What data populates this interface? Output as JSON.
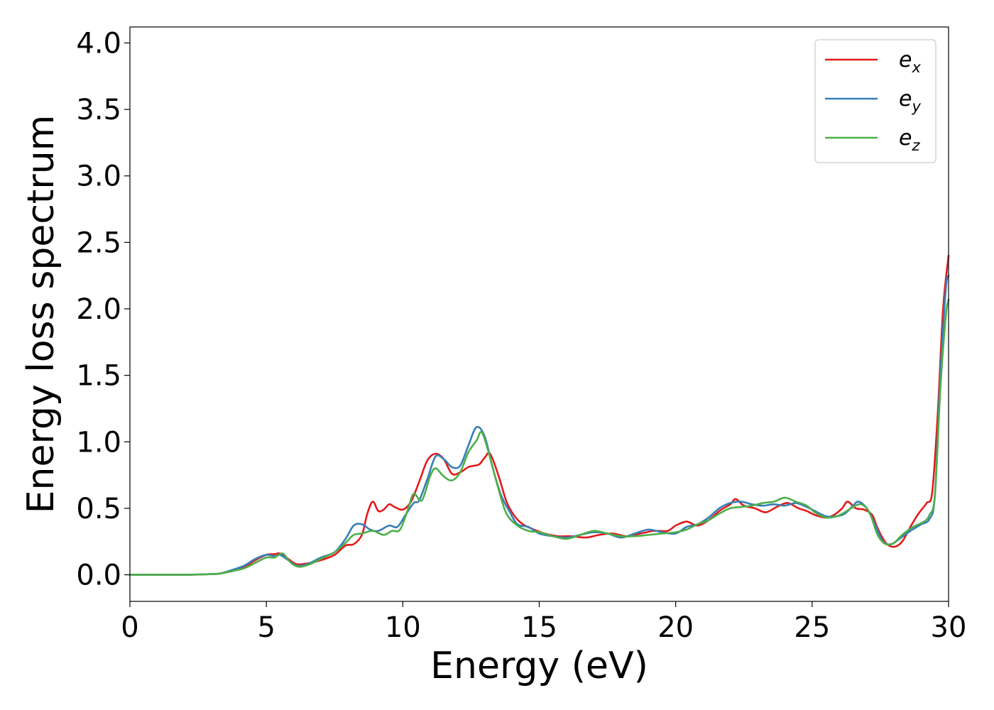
{
  "chart_data": {
    "type": "line",
    "xlabel": "Energy (eV)",
    "ylabel": "Energy loss spectrum",
    "xlim": [
      0,
      30
    ],
    "ylim": [
      -0.2,
      4.12
    ],
    "xticks": [
      0,
      5,
      10,
      15,
      20,
      25,
      30
    ],
    "yticks": [
      0.0,
      0.5,
      1.0,
      1.5,
      2.0,
      2.5,
      3.0,
      3.5,
      4.0
    ],
    "xtick_labels": [
      "0",
      "5",
      "10",
      "15",
      "20",
      "25",
      "30"
    ],
    "ytick_labels": [
      "0.0",
      "0.5",
      "1.0",
      "1.5",
      "2.0",
      "2.5",
      "3.0",
      "3.5",
      "4.0"
    ],
    "grid": false,
    "legend_position": "top-right",
    "series": [
      {
        "name": "e_x",
        "legend_base": "e",
        "legend_sub": "x",
        "color": "#e41a1c",
        "points": [
          [
            0,
            0
          ],
          [
            1,
            0
          ],
          [
            2,
            0
          ],
          [
            3,
            0.005
          ],
          [
            3.3,
            0.01
          ],
          [
            3.8,
            0.03
          ],
          [
            4.2,
            0.06
          ],
          [
            4.6,
            0.11
          ],
          [
            5,
            0.15
          ],
          [
            5.3,
            0.155
          ],
          [
            5.5,
            0.16
          ],
          [
            5.8,
            0.12
          ],
          [
            6.1,
            0.08
          ],
          [
            6.5,
            0.085
          ],
          [
            7,
            0.11
          ],
          [
            7.5,
            0.15
          ],
          [
            7.9,
            0.22
          ],
          [
            8.2,
            0.23
          ],
          [
            8.5,
            0.3
          ],
          [
            8.7,
            0.46
          ],
          [
            8.9,
            0.55
          ],
          [
            9.1,
            0.48
          ],
          [
            9.3,
            0.49
          ],
          [
            9.5,
            0.53
          ],
          [
            9.7,
            0.51
          ],
          [
            10,
            0.49
          ],
          [
            10.3,
            0.55
          ],
          [
            10.6,
            0.7
          ],
          [
            10.9,
            0.86
          ],
          [
            11.2,
            0.91
          ],
          [
            11.5,
            0.87
          ],
          [
            11.8,
            0.76
          ],
          [
            12.1,
            0.77
          ],
          [
            12.4,
            0.81
          ],
          [
            12.6,
            0.82
          ],
          [
            12.8,
            0.83
          ],
          [
            13,
            0.88
          ],
          [
            13.2,
            0.91
          ],
          [
            13.5,
            0.75
          ],
          [
            13.8,
            0.55
          ],
          [
            14.1,
            0.44
          ],
          [
            14.4,
            0.38
          ],
          [
            14.8,
            0.34
          ],
          [
            15.2,
            0.31
          ],
          [
            15.7,
            0.29
          ],
          [
            16.2,
            0.29
          ],
          [
            16.7,
            0.28
          ],
          [
            17.2,
            0.3
          ],
          [
            17.7,
            0.31
          ],
          [
            18.2,
            0.29
          ],
          [
            18.7,
            0.31
          ],
          [
            19.2,
            0.33
          ],
          [
            19.7,
            0.33
          ],
          [
            20,
            0.37
          ],
          [
            20.4,
            0.4
          ],
          [
            20.8,
            0.37
          ],
          [
            21.2,
            0.41
          ],
          [
            21.6,
            0.48
          ],
          [
            22,
            0.53
          ],
          [
            22.2,
            0.57
          ],
          [
            22.5,
            0.52
          ],
          [
            22.9,
            0.5
          ],
          [
            23.3,
            0.47
          ],
          [
            23.7,
            0.51
          ],
          [
            24.1,
            0.54
          ],
          [
            24.5,
            0.5
          ],
          [
            24.8,
            0.48
          ],
          [
            25.1,
            0.45
          ],
          [
            25.5,
            0.43
          ],
          [
            25.8,
            0.45
          ],
          [
            26.1,
            0.5
          ],
          [
            26.3,
            0.55
          ],
          [
            26.6,
            0.5
          ],
          [
            26.9,
            0.49
          ],
          [
            27.2,
            0.45
          ],
          [
            27.4,
            0.35
          ],
          [
            27.7,
            0.24
          ],
          [
            28,
            0.21
          ],
          [
            28.3,
            0.25
          ],
          [
            28.6,
            0.36
          ],
          [
            28.9,
            0.46
          ],
          [
            29.2,
            0.54
          ],
          [
            29.4,
            0.62
          ],
          [
            29.6,
            1.2
          ],
          [
            29.8,
            2.0
          ],
          [
            30,
            2.4
          ]
        ]
      },
      {
        "name": "e_y",
        "legend_base": "e",
        "legend_sub": "y",
        "color": "#377eb8",
        "points": [
          [
            0,
            0
          ],
          [
            1,
            0
          ],
          [
            2,
            0
          ],
          [
            3,
            0.005
          ],
          [
            3.3,
            0.01
          ],
          [
            3.8,
            0.04
          ],
          [
            4.2,
            0.07
          ],
          [
            4.6,
            0.12
          ],
          [
            5,
            0.15
          ],
          [
            5.3,
            0.14
          ],
          [
            5.5,
            0.15
          ],
          [
            5.8,
            0.11
          ],
          [
            6.1,
            0.07
          ],
          [
            6.5,
            0.08
          ],
          [
            7,
            0.13
          ],
          [
            7.5,
            0.17
          ],
          [
            7.9,
            0.27
          ],
          [
            8.2,
            0.37
          ],
          [
            8.5,
            0.38
          ],
          [
            8.8,
            0.34
          ],
          [
            9.1,
            0.33
          ],
          [
            9.5,
            0.37
          ],
          [
            9.8,
            0.36
          ],
          [
            10.1,
            0.45
          ],
          [
            10.4,
            0.54
          ],
          [
            10.6,
            0.56
          ],
          [
            10.9,
            0.72
          ],
          [
            11.2,
            0.89
          ],
          [
            11.5,
            0.87
          ],
          [
            11.8,
            0.81
          ],
          [
            12.1,
            0.82
          ],
          [
            12.4,
            0.97
          ],
          [
            12.7,
            1.11
          ],
          [
            13,
            1.04
          ],
          [
            13.3,
            0.8
          ],
          [
            13.6,
            0.6
          ],
          [
            13.9,
            0.48
          ],
          [
            14.2,
            0.38
          ],
          [
            14.6,
            0.36
          ],
          [
            15,
            0.31
          ],
          [
            15.5,
            0.29
          ],
          [
            16,
            0.28
          ],
          [
            16.5,
            0.3
          ],
          [
            17,
            0.32
          ],
          [
            17.5,
            0.31
          ],
          [
            18,
            0.28
          ],
          [
            18.5,
            0.31
          ],
          [
            19,
            0.34
          ],
          [
            19.5,
            0.32
          ],
          [
            20,
            0.31
          ],
          [
            20.4,
            0.36
          ],
          [
            20.8,
            0.38
          ],
          [
            21.2,
            0.43
          ],
          [
            21.6,
            0.5
          ],
          [
            22,
            0.54
          ],
          [
            22.4,
            0.55
          ],
          [
            22.8,
            0.53
          ],
          [
            23.2,
            0.52
          ],
          [
            23.6,
            0.53
          ],
          [
            24,
            0.52
          ],
          [
            24.4,
            0.54
          ],
          [
            24.8,
            0.51
          ],
          [
            25.1,
            0.48
          ],
          [
            25.5,
            0.44
          ],
          [
            25.9,
            0.44
          ],
          [
            26.2,
            0.46
          ],
          [
            26.5,
            0.52
          ],
          [
            26.7,
            0.55
          ],
          [
            27,
            0.5
          ],
          [
            27.3,
            0.38
          ],
          [
            27.6,
            0.25
          ],
          [
            27.9,
            0.23
          ],
          [
            28.2,
            0.27
          ],
          [
            28.6,
            0.33
          ],
          [
            29,
            0.38
          ],
          [
            29.3,
            0.42
          ],
          [
            29.5,
            0.6
          ],
          [
            29.7,
            1.5
          ],
          [
            29.9,
            2.15
          ],
          [
            30,
            2.25
          ]
        ]
      },
      {
        "name": "e_z",
        "legend_base": "e",
        "legend_sub": "z",
        "color": "#4daf4a",
        "points": [
          [
            0,
            0
          ],
          [
            1,
            0
          ],
          [
            2,
            0
          ],
          [
            3,
            0.005
          ],
          [
            3.3,
            0.01
          ],
          [
            3.8,
            0.03
          ],
          [
            4.2,
            0.05
          ],
          [
            4.6,
            0.09
          ],
          [
            5,
            0.13
          ],
          [
            5.3,
            0.13
          ],
          [
            5.6,
            0.16
          ],
          [
            5.9,
            0.09
          ],
          [
            6.2,
            0.06
          ],
          [
            6.6,
            0.08
          ],
          [
            7,
            0.12
          ],
          [
            7.5,
            0.17
          ],
          [
            7.9,
            0.24
          ],
          [
            8.2,
            0.3
          ],
          [
            8.5,
            0.31
          ],
          [
            8.9,
            0.33
          ],
          [
            9.3,
            0.3
          ],
          [
            9.6,
            0.33
          ],
          [
            9.9,
            0.34
          ],
          [
            10.2,
            0.5
          ],
          [
            10.4,
            0.61
          ],
          [
            10.7,
            0.56
          ],
          [
            11,
            0.74
          ],
          [
            11.2,
            0.8
          ],
          [
            11.5,
            0.74
          ],
          [
            11.8,
            0.71
          ],
          [
            12.1,
            0.77
          ],
          [
            12.4,
            0.92
          ],
          [
            12.7,
            1.01
          ],
          [
            12.9,
            1.07
          ],
          [
            13.2,
            0.88
          ],
          [
            13.5,
            0.65
          ],
          [
            13.8,
            0.46
          ],
          [
            14.2,
            0.37
          ],
          [
            14.6,
            0.33
          ],
          [
            15,
            0.32
          ],
          [
            15.5,
            0.29
          ],
          [
            16,
            0.27
          ],
          [
            16.5,
            0.3
          ],
          [
            17,
            0.33
          ],
          [
            17.5,
            0.31
          ],
          [
            18,
            0.29
          ],
          [
            18.5,
            0.29
          ],
          [
            19,
            0.3
          ],
          [
            19.5,
            0.31
          ],
          [
            20,
            0.32
          ],
          [
            20.4,
            0.34
          ],
          [
            20.8,
            0.38
          ],
          [
            21.2,
            0.41
          ],
          [
            21.6,
            0.46
          ],
          [
            22,
            0.5
          ],
          [
            22.4,
            0.51
          ],
          [
            22.8,
            0.52
          ],
          [
            23.2,
            0.54
          ],
          [
            23.6,
            0.55
          ],
          [
            24,
            0.58
          ],
          [
            24.4,
            0.55
          ],
          [
            24.8,
            0.52
          ],
          [
            25.1,
            0.47
          ],
          [
            25.5,
            0.43
          ],
          [
            25.9,
            0.44
          ],
          [
            26.2,
            0.47
          ],
          [
            26.5,
            0.51
          ],
          [
            26.8,
            0.53
          ],
          [
            27.1,
            0.47
          ],
          [
            27.4,
            0.3
          ],
          [
            27.7,
            0.23
          ],
          [
            28,
            0.24
          ],
          [
            28.3,
            0.3
          ],
          [
            28.7,
            0.36
          ],
          [
            29.1,
            0.4
          ],
          [
            29.3,
            0.45
          ],
          [
            29.5,
            0.6
          ],
          [
            29.7,
            1.4
          ],
          [
            29.9,
            1.95
          ],
          [
            30,
            2.07
          ]
        ]
      }
    ]
  }
}
